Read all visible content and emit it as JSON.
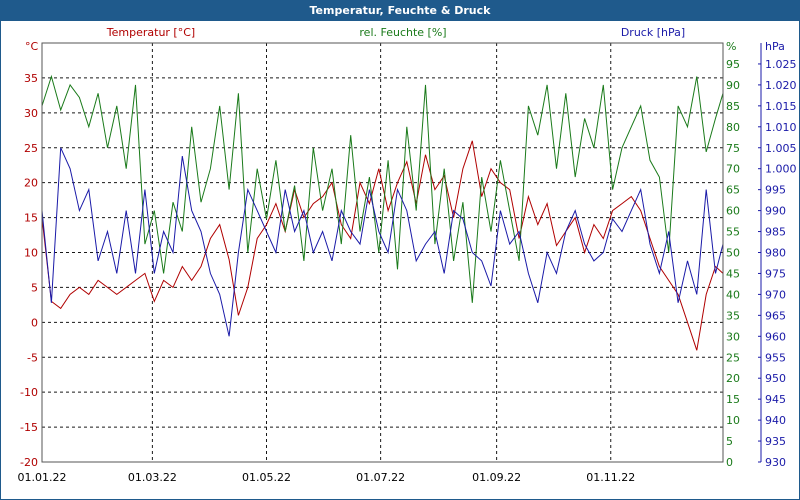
{
  "window": {
    "title": "Temperatur, Feuchte & Druck"
  },
  "colors": {
    "temperature": "#b00000",
    "humidity": "#1a7a1a",
    "pressure": "#1a1aa8",
    "title_bar": "#1f5a8c",
    "grid": "#000000"
  },
  "chart_data": {
    "type": "line",
    "grid": true,
    "legend_placement": "top",
    "x_axis": {
      "min": "2022-01-01",
      "max": "2022-12-31",
      "ticks": [
        "01.01.22",
        "01.03.22",
        "01.05.22",
        "01.07.22",
        "01.09.22",
        "01.11.22"
      ]
    },
    "axes": {
      "temperature": {
        "unit_label": "°C",
        "min": -20,
        "max": 40,
        "ticks": [
          -20,
          -15,
          -10,
          -5,
          0,
          5,
          10,
          15,
          20,
          25,
          30,
          35
        ]
      },
      "humidity": {
        "unit_label": "%",
        "min": 0,
        "max": 100,
        "ticks": [
          0,
          5,
          10,
          15,
          20,
          25,
          30,
          35,
          40,
          45,
          50,
          55,
          60,
          65,
          70,
          75,
          80,
          85,
          90,
          95
        ]
      },
      "pressure": {
        "unit_label": "hPa",
        "min": 930,
        "max": 1030,
        "ticks": [
          "930",
          "935",
          "940",
          "945",
          "950",
          "955",
          "960",
          "965",
          "970",
          "975",
          "980",
          "985",
          "990",
          "995",
          "1.000",
          "1.005",
          "1.010",
          "1.015",
          "1.020",
          "1.025"
        ]
      }
    },
    "series": [
      {
        "name": "Temperatur [°C]",
        "axis": "temperature",
        "color": "#b00000",
        "x": [
          "2022-01-01",
          "2022-01-06",
          "2022-01-11",
          "2022-01-16",
          "2022-01-21",
          "2022-01-26",
          "2022-01-31",
          "2022-02-05",
          "2022-02-10",
          "2022-02-15",
          "2022-02-20",
          "2022-02-25",
          "2022-03-02",
          "2022-03-07",
          "2022-03-12",
          "2022-03-17",
          "2022-03-22",
          "2022-03-27",
          "2022-04-01",
          "2022-04-06",
          "2022-04-11",
          "2022-04-16",
          "2022-04-21",
          "2022-04-26",
          "2022-05-01",
          "2022-05-06",
          "2022-05-11",
          "2022-05-16",
          "2022-05-21",
          "2022-05-26",
          "2022-05-31",
          "2022-06-05",
          "2022-06-10",
          "2022-06-15",
          "2022-06-20",
          "2022-06-25",
          "2022-06-30",
          "2022-07-05",
          "2022-07-10",
          "2022-07-15",
          "2022-07-20",
          "2022-07-25",
          "2022-07-30",
          "2022-08-04",
          "2022-08-09",
          "2022-08-14",
          "2022-08-19",
          "2022-08-24",
          "2022-08-29",
          "2022-09-03",
          "2022-09-08",
          "2022-09-13",
          "2022-09-18",
          "2022-09-23",
          "2022-09-28",
          "2022-10-03",
          "2022-10-08",
          "2022-10-13",
          "2022-10-18",
          "2022-10-23",
          "2022-10-28",
          "2022-11-02",
          "2022-11-07",
          "2022-11-12",
          "2022-11-17",
          "2022-11-22",
          "2022-11-27",
          "2022-12-02",
          "2022-12-07",
          "2022-12-12",
          "2022-12-17",
          "2022-12-22",
          "2022-12-27",
          "2022-12-31"
        ],
        "values": [
          15,
          3,
          2,
          4,
          5,
          4,
          6,
          5,
          4,
          5,
          6,
          7,
          3,
          6,
          5,
          8,
          6,
          8,
          12,
          14,
          9,
          1,
          5,
          12,
          14,
          17,
          13,
          19,
          15,
          17,
          18,
          20,
          14,
          12,
          20,
          17,
          22,
          16,
          20,
          23,
          17,
          24,
          19,
          21,
          15,
          22,
          26,
          18,
          22,
          20,
          19,
          12,
          18,
          14,
          17,
          11,
          13,
          15,
          10,
          14,
          12,
          16,
          17,
          18,
          16,
          12,
          8,
          6,
          4,
          0,
          -4,
          4,
          8,
          7
        ]
      },
      {
        "name": "rel. Feuchte [%]",
        "axis": "humidity",
        "color": "#1a7a1a",
        "x": [
          "2022-01-01",
          "2022-01-06",
          "2022-01-11",
          "2022-01-16",
          "2022-01-21",
          "2022-01-26",
          "2022-01-31",
          "2022-02-05",
          "2022-02-10",
          "2022-02-15",
          "2022-02-20",
          "2022-02-25",
          "2022-03-02",
          "2022-03-07",
          "2022-03-12",
          "2022-03-17",
          "2022-03-22",
          "2022-03-27",
          "2022-04-01",
          "2022-04-06",
          "2022-04-11",
          "2022-04-16",
          "2022-04-21",
          "2022-04-26",
          "2022-05-01",
          "2022-05-06",
          "2022-05-11",
          "2022-05-16",
          "2022-05-21",
          "2022-05-26",
          "2022-05-31",
          "2022-06-05",
          "2022-06-10",
          "2022-06-15",
          "2022-06-20",
          "2022-06-25",
          "2022-06-30",
          "2022-07-05",
          "2022-07-10",
          "2022-07-15",
          "2022-07-20",
          "2022-07-25",
          "2022-07-30",
          "2022-08-04",
          "2022-08-09",
          "2022-08-14",
          "2022-08-19",
          "2022-08-24",
          "2022-08-29",
          "2022-09-03",
          "2022-09-08",
          "2022-09-13",
          "2022-09-18",
          "2022-09-23",
          "2022-09-28",
          "2022-10-03",
          "2022-10-08",
          "2022-10-13",
          "2022-10-18",
          "2022-10-23",
          "2022-10-28",
          "2022-11-02",
          "2022-11-07",
          "2022-11-12",
          "2022-11-17",
          "2022-11-22",
          "2022-11-27",
          "2022-12-02",
          "2022-12-07",
          "2022-12-12",
          "2022-12-17",
          "2022-12-22",
          "2022-12-27",
          "2022-12-31"
        ],
        "values": [
          85,
          92,
          84,
          90,
          87,
          80,
          88,
          75,
          85,
          70,
          90,
          52,
          60,
          45,
          62,
          55,
          80,
          62,
          70,
          85,
          65,
          88,
          50,
          70,
          58,
          72,
          55,
          66,
          48,
          75,
          60,
          70,
          52,
          78,
          55,
          68,
          50,
          72,
          46,
          80,
          60,
          90,
          52,
          70,
          48,
          62,
          38,
          68,
          55,
          72,
          60,
          48,
          85,
          78,
          90,
          70,
          88,
          68,
          82,
          75,
          90,
          65,
          75,
          80,
          85,
          72,
          68,
          50,
          85,
          80,
          92,
          74,
          82,
          88
        ]
      },
      {
        "name": "Druck [hPa]",
        "axis": "pressure",
        "color": "#1a1aa8",
        "x": [
          "2022-01-01",
          "2022-01-06",
          "2022-01-11",
          "2022-01-16",
          "2022-01-21",
          "2022-01-26",
          "2022-01-31",
          "2022-02-05",
          "2022-02-10",
          "2022-02-15",
          "2022-02-20",
          "2022-02-25",
          "2022-03-02",
          "2022-03-07",
          "2022-03-12",
          "2022-03-17",
          "2022-03-22",
          "2022-03-27",
          "2022-04-01",
          "2022-04-06",
          "2022-04-11",
          "2022-04-16",
          "2022-04-21",
          "2022-04-26",
          "2022-05-01",
          "2022-05-06",
          "2022-05-11",
          "2022-05-16",
          "2022-05-21",
          "2022-05-26",
          "2022-05-31",
          "2022-06-05",
          "2022-06-10",
          "2022-06-15",
          "2022-06-20",
          "2022-06-25",
          "2022-06-30",
          "2022-07-05",
          "2022-07-10",
          "2022-07-15",
          "2022-07-20",
          "2022-07-25",
          "2022-07-30",
          "2022-08-04",
          "2022-08-09",
          "2022-08-14",
          "2022-08-19",
          "2022-08-24",
          "2022-08-29",
          "2022-09-03",
          "2022-09-08",
          "2022-09-13",
          "2022-09-18",
          "2022-09-23",
          "2022-09-28",
          "2022-10-03",
          "2022-10-08",
          "2022-10-13",
          "2022-10-18",
          "2022-10-23",
          "2022-10-28",
          "2022-11-02",
          "2022-11-07",
          "2022-11-12",
          "2022-11-17",
          "2022-11-22",
          "2022-11-27",
          "2022-12-02",
          "2022-12-07",
          "2022-12-12",
          "2022-12-17",
          "2022-12-22",
          "2022-12-27",
          "2022-12-31"
        ],
        "values": [
          990,
          968,
          1005,
          1000,
          990,
          995,
          978,
          985,
          975,
          990,
          975,
          995,
          975,
          985,
          980,
          1003,
          990,
          985,
          975,
          970,
          960,
          980,
          995,
          990,
          985,
          980,
          995,
          985,
          990,
          980,
          985,
          978,
          990,
          985,
          982,
          995,
          985,
          980,
          995,
          990,
          978,
          982,
          985,
          975,
          990,
          988,
          980,
          978,
          972,
          990,
          982,
          985,
          975,
          968,
          980,
          975,
          985,
          990,
          982,
          978,
          980,
          988,
          985,
          990,
          995,
          982,
          975,
          985,
          968,
          978,
          970,
          995,
          975,
          982
        ]
      }
    ]
  }
}
